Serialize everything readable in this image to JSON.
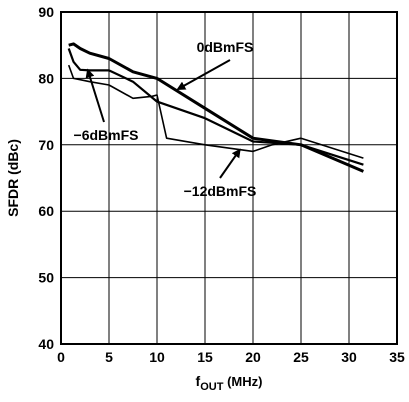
{
  "chart_data": {
    "type": "line",
    "title": "",
    "xlabel": "f",
    "xlabel_sub": "OUT",
    "xlabel_unit": " (MHz)",
    "ylabel": "SFDR (dBc)",
    "xlim": [
      0,
      35
    ],
    "ylim": [
      40,
      90
    ],
    "xticks": [
      0,
      5,
      10,
      15,
      20,
      25,
      30,
      35
    ],
    "yticks": [
      40,
      50,
      60,
      70,
      80,
      90
    ],
    "grid": true,
    "line_color": "#000000",
    "series": [
      {
        "name": "0dBmFS",
        "x": [
          0.8,
          1.3,
          2,
          3,
          5,
          7.5,
          10,
          15,
          20,
          25,
          31.5
        ],
        "y": [
          85,
          85.2,
          84.5,
          83.8,
          83,
          81,
          80,
          75.5,
          71,
          70,
          66
        ]
      },
      {
        "name": "−6dBmFS",
        "x": [
          0.8,
          1.3,
          2,
          3,
          5,
          7.5,
          10,
          15,
          20,
          25,
          31.5
        ],
        "y": [
          84.5,
          82.5,
          81.3,
          81.2,
          81.2,
          79.5,
          76.5,
          74,
          70.5,
          70,
          67
        ]
      },
      {
        "name": "−12dBmFS",
        "x": [
          0.8,
          1.3,
          2,
          3,
          5,
          7.5,
          9.5,
          10,
          11,
          15,
          20,
          22,
          25,
          31.5
        ],
        "y": [
          82,
          80,
          79.8,
          79.5,
          79,
          77,
          77.3,
          77.5,
          71,
          70,
          69,
          70,
          71,
          68
        ]
      }
    ],
    "annotations": [
      {
        "text": "0dBmFS",
        "points_to": "0dBmFS"
      },
      {
        "text": "−6dBmFS",
        "points_to": "−6dBmFS"
      },
      {
        "text": "−12dBmFS",
        "points_to": "−12dBmFS"
      }
    ]
  }
}
